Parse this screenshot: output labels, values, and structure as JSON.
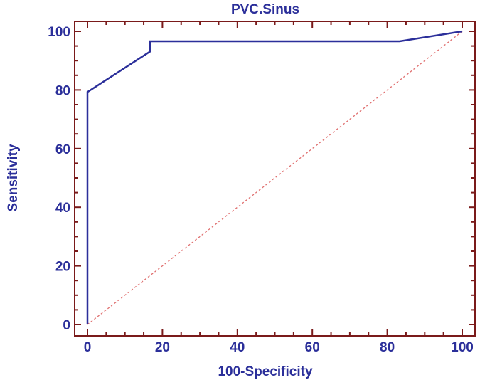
{
  "chart_data": {
    "type": "line",
    "title": "PVC.Sinus",
    "xlabel": "100-Specificity",
    "ylabel": "Sensitivity",
    "xlim": [
      0,
      100
    ],
    "ylim": [
      0,
      100
    ],
    "xticks": [
      0,
      20,
      40,
      60,
      80,
      100
    ],
    "yticks": [
      0,
      20,
      40,
      60,
      80,
      100
    ],
    "grid": false,
    "colors": {
      "frame": "#7a1a1a",
      "curve": "#2b2f9a",
      "diagonal": "#e07070",
      "text": "#2b2f9a"
    },
    "series": [
      {
        "x": [
          0,
          0,
          16.7,
          16.7,
          83.3,
          100
        ],
        "y": [
          0,
          79.3,
          93.1,
          96.6,
          96.6,
          100
        ]
      },
      {
        "style": "dotted",
        "x": [
          0,
          100
        ],
        "y": [
          0,
          100
        ]
      }
    ]
  }
}
